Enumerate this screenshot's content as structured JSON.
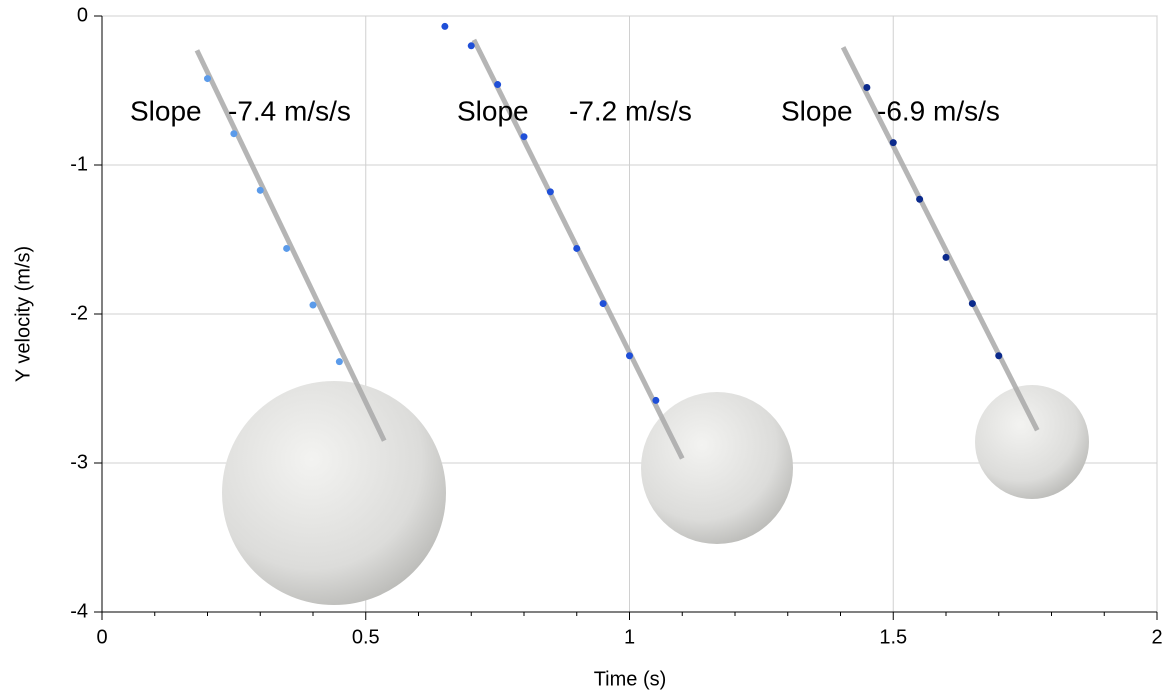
{
  "chart_data": {
    "type": "scatter",
    "xlabel": "Time (s)",
    "ylabel": "Y velocity (m/s)",
    "xlim": [
      0,
      2
    ],
    "ylim": [
      -4,
      0
    ],
    "xticks": [
      0,
      0.5,
      1,
      1.5,
      2
    ],
    "yticks": [
      0,
      -1,
      -2,
      -3,
      -4
    ],
    "grid": true,
    "series": [
      {
        "color": "#5b9bea",
        "x": [
          0.2,
          0.25,
          0.3,
          0.35,
          0.4,
          0.45
        ],
        "values": [
          -0.42,
          -0.79,
          -1.17,
          -1.56,
          -1.94,
          -2.32
        ],
        "fit_x": [
          0.18,
          0.535
        ],
        "fit_y": [
          -0.23,
          -2.85
        ],
        "annotation": [
          "Slope",
          "-7.4 m/s/s"
        ]
      },
      {
        "color": "#1f4fd8",
        "x": [
          0.65,
          0.7,
          0.75,
          0.8,
          0.85,
          0.9,
          0.95,
          1.0,
          1.05
        ],
        "values": [
          -0.07,
          -0.2,
          -0.46,
          -0.81,
          -1.18,
          -1.56,
          -1.93,
          -2.28,
          -2.58
        ],
        "fit_x": [
          0.705,
          1.1
        ],
        "fit_y": [
          -0.16,
          -2.97
        ],
        "annotation": [
          "Slope",
          "-7.2 m/s/s"
        ]
      },
      {
        "color": "#0b2a8c",
        "x": [
          1.45,
          1.5,
          1.55,
          1.6,
          1.65,
          1.7
        ],
        "values": [
          -0.48,
          -0.85,
          -1.23,
          -1.62,
          -1.93,
          -2.28
        ],
        "fit_x": [
          1.405,
          1.773
        ],
        "fit_y": [
          -0.21,
          -2.78
        ],
        "annotation": [
          "Slope",
          "-6.9 m/s/s"
        ]
      }
    ]
  }
}
